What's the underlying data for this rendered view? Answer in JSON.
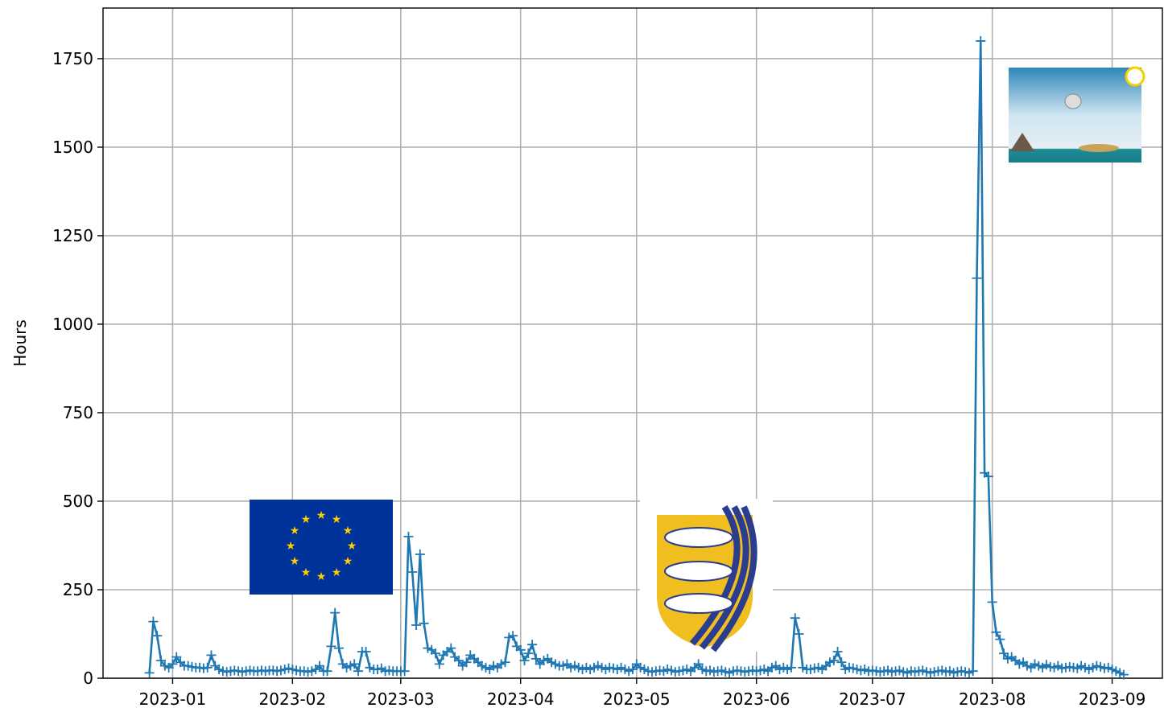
{
  "chart_data": {
    "type": "line",
    "y_label": "Hours",
    "color": "#1f77b4",
    "marker": "+",
    "grid": true,
    "xlim": [
      "2022-12-14",
      "2023-09-14"
    ],
    "xticks": [
      {
        "value": "2023-01-01",
        "label": "2023-01"
      },
      {
        "value": "2023-02-01",
        "label": "2023-02"
      },
      {
        "value": "2023-03-01",
        "label": "2023-03"
      },
      {
        "value": "2023-04-01",
        "label": "2023-04"
      },
      {
        "value": "2023-05-01",
        "label": "2023-05"
      },
      {
        "value": "2023-06-01",
        "label": "2023-06"
      },
      {
        "value": "2023-07-01",
        "label": "2023-07"
      },
      {
        "value": "2023-08-01",
        "label": "2023-08"
      },
      {
        "value": "2023-09-01",
        "label": "2023-09"
      }
    ],
    "ylim": [
      0,
      1893
    ],
    "yticks": [
      0,
      250,
      500,
      750,
      1000,
      1250,
      1500,
      1750
    ],
    "x": [
      "2022-12-26",
      "2022-12-27",
      "2022-12-28",
      "2022-12-29",
      "2022-12-30",
      "2022-12-31",
      "2023-01-01",
      "2023-01-02",
      "2023-01-03",
      "2023-01-04",
      "2023-01-05",
      "2023-01-06",
      "2023-01-07",
      "2023-01-08",
      "2023-01-09",
      "2023-01-10",
      "2023-01-11",
      "2023-01-12",
      "2023-01-13",
      "2023-01-14",
      "2023-01-15",
      "2023-01-16",
      "2023-01-17",
      "2023-01-18",
      "2023-01-19",
      "2023-01-20",
      "2023-01-21",
      "2023-01-22",
      "2023-01-23",
      "2023-01-24",
      "2023-01-25",
      "2023-01-26",
      "2023-01-27",
      "2023-01-28",
      "2023-01-29",
      "2023-01-30",
      "2023-01-31",
      "2023-02-01",
      "2023-02-02",
      "2023-02-03",
      "2023-02-04",
      "2023-02-05",
      "2023-02-06",
      "2023-02-07",
      "2023-02-08",
      "2023-02-09",
      "2023-02-10",
      "2023-02-11",
      "2023-02-12",
      "2023-02-13",
      "2023-02-14",
      "2023-02-15",
      "2023-02-16",
      "2023-02-17",
      "2023-02-18",
      "2023-02-19",
      "2023-02-20",
      "2023-02-21",
      "2023-02-22",
      "2023-02-23",
      "2023-02-24",
      "2023-02-25",
      "2023-02-26",
      "2023-02-27",
      "2023-02-28",
      "2023-03-01",
      "2023-03-02",
      "2023-03-03",
      "2023-03-04",
      "2023-03-05",
      "2023-03-06",
      "2023-03-07",
      "2023-03-08",
      "2023-03-09",
      "2023-03-10",
      "2023-03-11",
      "2023-03-12",
      "2023-03-13",
      "2023-03-14",
      "2023-03-15",
      "2023-03-16",
      "2023-03-17",
      "2023-03-18",
      "2023-03-19",
      "2023-03-20",
      "2023-03-21",
      "2023-03-22",
      "2023-03-23",
      "2023-03-24",
      "2023-03-25",
      "2023-03-26",
      "2023-03-27",
      "2023-03-28",
      "2023-03-29",
      "2023-03-30",
      "2023-03-31",
      "2023-04-01",
      "2023-04-02",
      "2023-04-03",
      "2023-04-04",
      "2023-04-05",
      "2023-04-06",
      "2023-04-07",
      "2023-04-08",
      "2023-04-09",
      "2023-04-10",
      "2023-04-11",
      "2023-04-12",
      "2023-04-13",
      "2023-04-14",
      "2023-04-15",
      "2023-04-16",
      "2023-04-17",
      "2023-04-18",
      "2023-04-19",
      "2023-04-20",
      "2023-04-21",
      "2023-04-22",
      "2023-04-23",
      "2023-04-24",
      "2023-04-25",
      "2023-04-26",
      "2023-04-27",
      "2023-04-28",
      "2023-04-29",
      "2023-04-30",
      "2023-05-01",
      "2023-05-02",
      "2023-05-03",
      "2023-05-04",
      "2023-05-05",
      "2023-05-06",
      "2023-05-07",
      "2023-05-08",
      "2023-05-09",
      "2023-05-10",
      "2023-05-11",
      "2023-05-12",
      "2023-05-13",
      "2023-05-14",
      "2023-05-15",
      "2023-05-16",
      "2023-05-17",
      "2023-05-18",
      "2023-05-19",
      "2023-05-20",
      "2023-05-21",
      "2023-05-22",
      "2023-05-23",
      "2023-05-24",
      "2023-05-25",
      "2023-05-26",
      "2023-05-27",
      "2023-05-28",
      "2023-05-29",
      "2023-05-30",
      "2023-05-31",
      "2023-06-01",
      "2023-06-02",
      "2023-06-03",
      "2023-06-04",
      "2023-06-05",
      "2023-06-06",
      "2023-06-07",
      "2023-06-08",
      "2023-06-09",
      "2023-06-10",
      "2023-06-11",
      "2023-06-12",
      "2023-06-13",
      "2023-06-14",
      "2023-06-15",
      "2023-06-16",
      "2023-06-17",
      "2023-06-18",
      "2023-06-19",
      "2023-06-20",
      "2023-06-21",
      "2023-06-22",
      "2023-06-23",
      "2023-06-24",
      "2023-06-25",
      "2023-06-26",
      "2023-06-27",
      "2023-06-28",
      "2023-06-29",
      "2023-06-30",
      "2023-07-01",
      "2023-07-02",
      "2023-07-03",
      "2023-07-04",
      "2023-07-05",
      "2023-07-06",
      "2023-07-07",
      "2023-07-08",
      "2023-07-09",
      "2023-07-10",
      "2023-07-11",
      "2023-07-12",
      "2023-07-13",
      "2023-07-14",
      "2023-07-15",
      "2023-07-16",
      "2023-07-17",
      "2023-07-18",
      "2023-07-19",
      "2023-07-20",
      "2023-07-21",
      "2023-07-22",
      "2023-07-23",
      "2023-07-24",
      "2023-07-25",
      "2023-07-26",
      "2023-07-27",
      "2023-07-28",
      "2023-07-29",
      "2023-07-30",
      "2023-07-31",
      "2023-08-01",
      "2023-08-02",
      "2023-08-03",
      "2023-08-04",
      "2023-08-05",
      "2023-08-06",
      "2023-08-07",
      "2023-08-08",
      "2023-08-09",
      "2023-08-10",
      "2023-08-11",
      "2023-08-12",
      "2023-08-13",
      "2023-08-14",
      "2023-08-15",
      "2023-08-16",
      "2023-08-17",
      "2023-08-18",
      "2023-08-19",
      "2023-08-20",
      "2023-08-21",
      "2023-08-22",
      "2023-08-23",
      "2023-08-24",
      "2023-08-25",
      "2023-08-26",
      "2023-08-27",
      "2023-08-28",
      "2023-08-29",
      "2023-08-30",
      "2023-08-31",
      "2023-09-01",
      "2023-09-02",
      "2023-09-03",
      "2023-09-04"
    ],
    "values": [
      15,
      160,
      120,
      50,
      35,
      30,
      40,
      60,
      45,
      35,
      35,
      32,
      30,
      30,
      28,
      30,
      65,
      35,
      25,
      20,
      18,
      20,
      22,
      20,
      18,
      20,
      22,
      20,
      20,
      22,
      20,
      22,
      22,
      20,
      22,
      25,
      28,
      25,
      22,
      20,
      20,
      18,
      20,
      25,
      35,
      20,
      20,
      90,
      185,
      85,
      40,
      30,
      35,
      40,
      20,
      75,
      75,
      30,
      25,
      25,
      28,
      20,
      22,
      20,
      20,
      20,
      20,
      400,
      300,
      150,
      350,
      155,
      85,
      80,
      70,
      40,
      65,
      75,
      85,
      60,
      50,
      35,
      45,
      65,
      55,
      45,
      35,
      30,
      25,
      35,
      30,
      40,
      45,
      115,
      120,
      90,
      80,
      50,
      70,
      95,
      55,
      40,
      50,
      55,
      45,
      40,
      35,
      35,
      40,
      30,
      35,
      30,
      25,
      30,
      25,
      30,
      35,
      30,
      25,
      30,
      28,
      25,
      30,
      25,
      20,
      25,
      40,
      30,
      25,
      20,
      18,
      20,
      22,
      20,
      25,
      22,
      18,
      20,
      22,
      25,
      20,
      30,
      40,
      25,
      20,
      22,
      18,
      20,
      22,
      18,
      15,
      20,
      22,
      20,
      18,
      20,
      22,
      20,
      22,
      25,
      20,
      30,
      35,
      25,
      30,
      25,
      30,
      170,
      125,
      30,
      25,
      25,
      28,
      30,
      25,
      35,
      45,
      50,
      75,
      45,
      25,
      30,
      28,
      25,
      22,
      25,
      20,
      22,
      20,
      18,
      20,
      22,
      18,
      20,
      22,
      18,
      15,
      20,
      18,
      20,
      22,
      18,
      15,
      18,
      20,
      22,
      18,
      20,
      15,
      18,
      20,
      18,
      15,
      20,
      1130,
      1800,
      580,
      570,
      215,
      130,
      110,
      70,
      55,
      60,
      50,
      40,
      45,
      35,
      30,
      40,
      35,
      30,
      38,
      32,
      30,
      35,
      28,
      30,
      32,
      30,
      28,
      35,
      30,
      25,
      30,
      35,
      32,
      28,
      30,
      25,
      20,
      15,
      10
    ]
  }
}
